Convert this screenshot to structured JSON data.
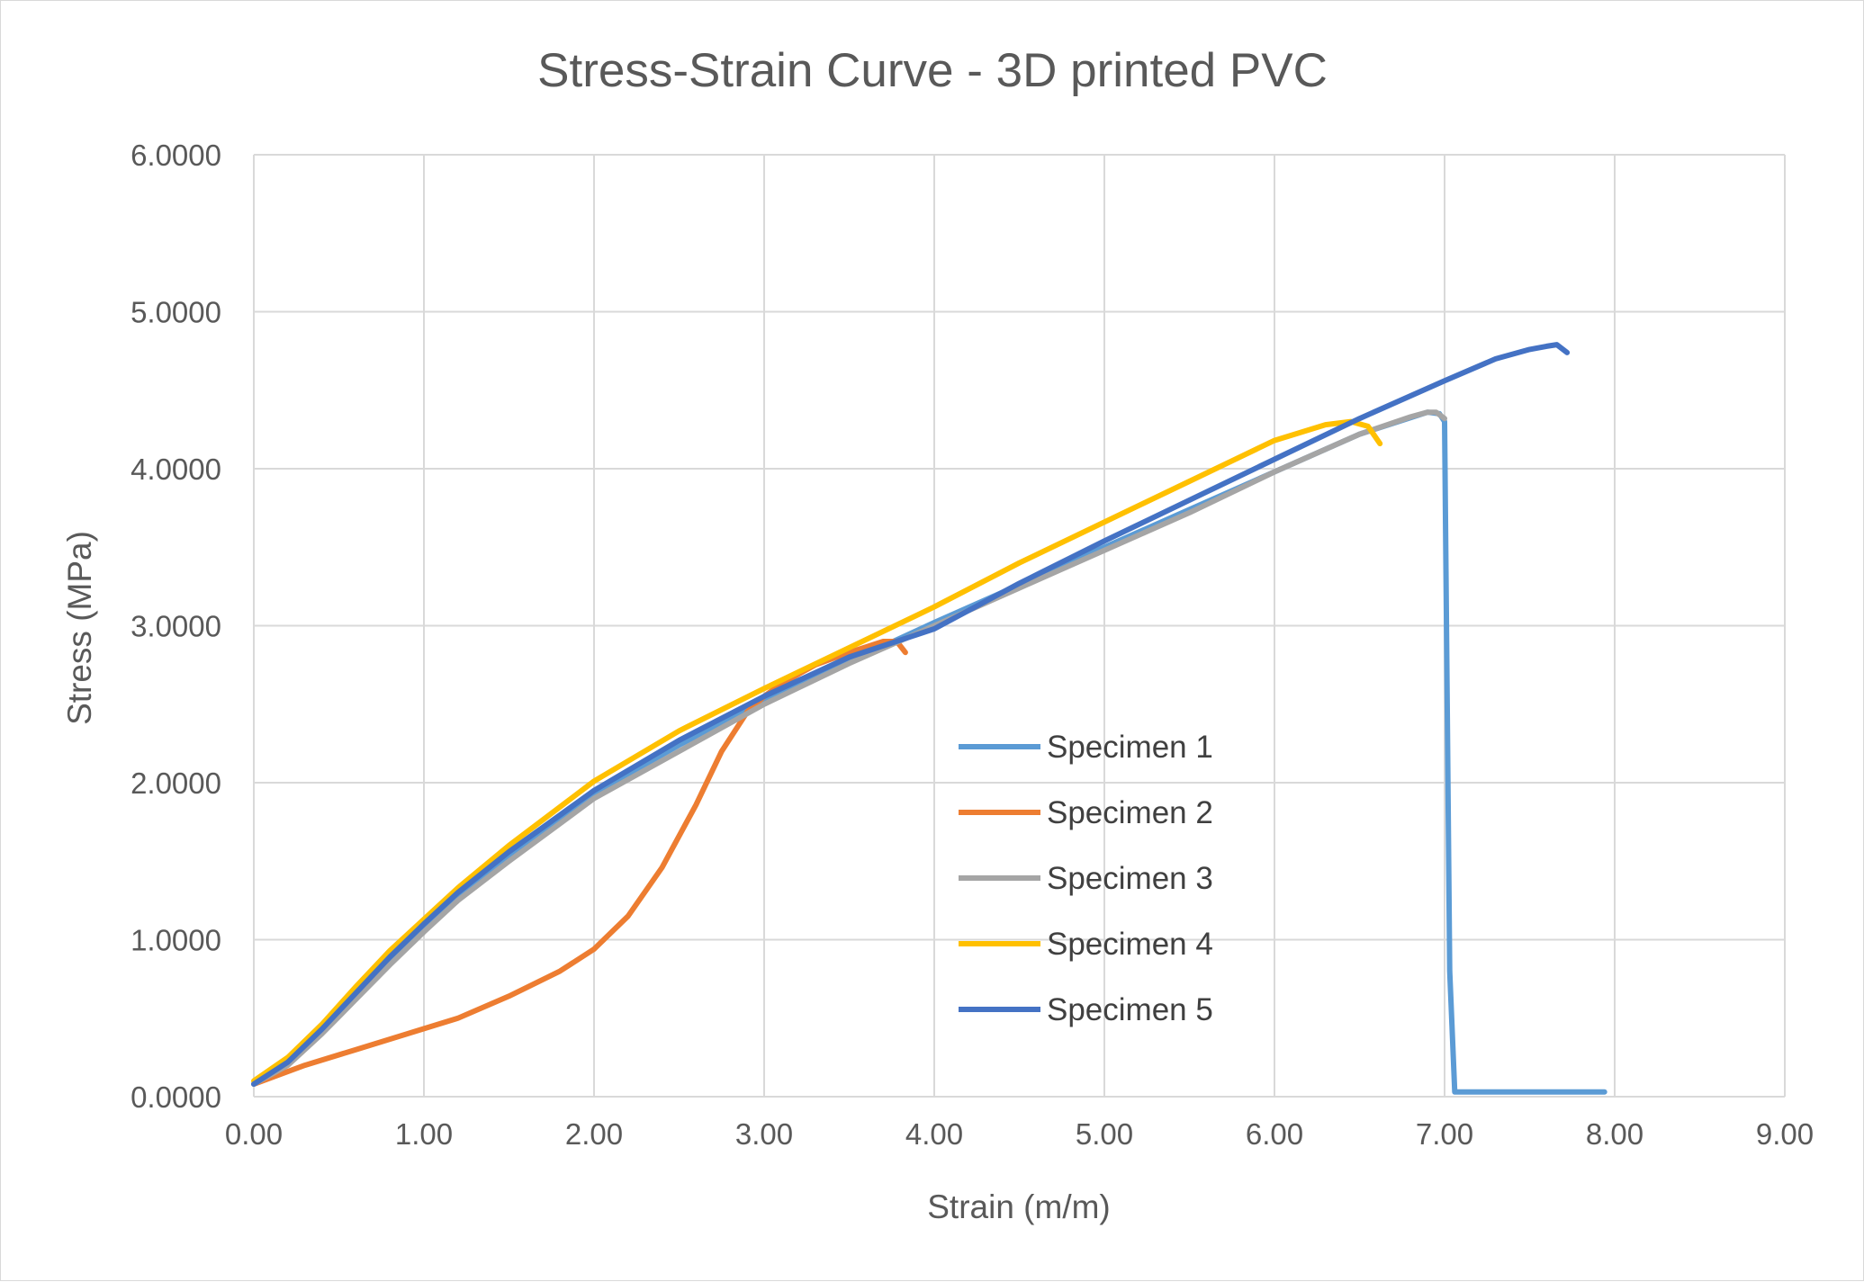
{
  "chart_data": {
    "type": "line",
    "title": "Stress-Strain Curve - 3D printed PVC",
    "xlabel": "Strain (m/m)",
    "ylabel": "Stress (MPa)",
    "xlim": [
      0,
      9
    ],
    "ylim": [
      0,
      6
    ],
    "x_ticks": [
      "0.00",
      "1.00",
      "2.00",
      "3.00",
      "4.00",
      "5.00",
      "6.00",
      "7.00",
      "8.00",
      "9.00"
    ],
    "y_ticks": [
      "0.0000",
      "1.0000",
      "2.0000",
      "3.0000",
      "4.0000",
      "5.0000",
      "6.0000"
    ],
    "grid": true,
    "legend_position": "inside-center-right",
    "series": [
      {
        "name": "Specimen 1",
        "color": "#5B9BD5",
        "x": [
          0.0,
          0.2,
          0.4,
          0.6,
          0.8,
          1.0,
          1.2,
          1.5,
          2.0,
          2.5,
          3.0,
          3.5,
          4.0,
          4.5,
          5.0,
          5.5,
          6.0,
          6.5,
          6.9,
          6.97,
          7.0,
          7.03,
          7.06,
          7.3,
          7.6,
          7.94
        ],
        "y": [
          0.08,
          0.22,
          0.42,
          0.64,
          0.86,
          1.07,
          1.27,
          1.53,
          1.93,
          2.24,
          2.52,
          2.77,
          3.02,
          3.26,
          3.5,
          3.74,
          3.98,
          4.22,
          4.36,
          4.35,
          4.3,
          0.8,
          0.03,
          0.03,
          0.03,
          0.03
        ]
      },
      {
        "name": "Specimen 2",
        "color": "#ED7D31",
        "x": [
          0.0,
          0.3,
          0.6,
          0.9,
          1.2,
          1.5,
          1.8,
          2.0,
          2.2,
          2.4,
          2.6,
          2.75,
          2.9,
          3.0,
          3.1,
          3.3,
          3.5,
          3.7,
          3.78,
          3.83
        ],
        "y": [
          0.08,
          0.2,
          0.3,
          0.4,
          0.5,
          0.64,
          0.8,
          0.94,
          1.15,
          1.46,
          1.86,
          2.2,
          2.45,
          2.55,
          2.63,
          2.75,
          2.83,
          2.9,
          2.9,
          2.83
        ]
      },
      {
        "name": "Specimen 3",
        "color": "#A5A5A5",
        "x": [
          0.0,
          0.2,
          0.4,
          0.6,
          0.8,
          1.0,
          1.2,
          1.5,
          2.0,
          2.5,
          3.0,
          3.5,
          4.0,
          4.5,
          5.0,
          5.5,
          6.0,
          6.5,
          6.8,
          6.9,
          6.95,
          7.0
        ],
        "y": [
          0.08,
          0.2,
          0.4,
          0.62,
          0.84,
          1.05,
          1.25,
          1.5,
          1.9,
          2.2,
          2.5,
          2.76,
          3.0,
          3.24,
          3.48,
          3.72,
          3.98,
          4.22,
          4.33,
          4.36,
          4.36,
          4.32
        ]
      },
      {
        "name": "Specimen 4",
        "color": "#FFC000",
        "x": [
          0.0,
          0.2,
          0.4,
          0.6,
          0.8,
          1.0,
          1.2,
          1.5,
          2.0,
          2.5,
          3.0,
          3.5,
          4.0,
          4.5,
          5.0,
          5.5,
          6.0,
          6.3,
          6.45,
          6.55,
          6.62
        ],
        "y": [
          0.1,
          0.25,
          0.46,
          0.7,
          0.93,
          1.13,
          1.33,
          1.6,
          2.01,
          2.33,
          2.6,
          2.86,
          3.12,
          3.4,
          3.66,
          3.92,
          4.18,
          4.28,
          4.3,
          4.27,
          4.16
        ]
      },
      {
        "name": "Specimen 5",
        "color": "#4472C4",
        "x": [
          0.0,
          0.2,
          0.4,
          0.6,
          0.8,
          1.0,
          1.2,
          1.5,
          2.0,
          2.5,
          3.0,
          3.5,
          4.0,
          4.5,
          5.0,
          5.5,
          6.0,
          6.5,
          7.0,
          7.3,
          7.5,
          7.6,
          7.66,
          7.72
        ],
        "y": [
          0.08,
          0.22,
          0.43,
          0.66,
          0.89,
          1.1,
          1.3,
          1.56,
          1.95,
          2.27,
          2.55,
          2.8,
          2.98,
          3.27,
          3.54,
          3.8,
          4.06,
          4.32,
          4.56,
          4.7,
          4.76,
          4.78,
          4.79,
          4.74
        ]
      }
    ]
  }
}
